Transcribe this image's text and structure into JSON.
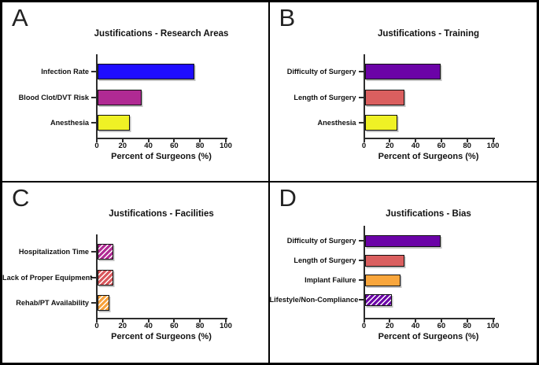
{
  "figure": {
    "background": "#ffffff",
    "border_color": "#000000",
    "x_axis_label": "Percent of Surgeons (%)",
    "x_ticks": [
      0,
      20,
      40,
      60,
      80,
      100
    ],
    "x_range": [
      0,
      100
    ]
  },
  "chart_data": [
    {
      "type": "bar",
      "orientation": "horizontal",
      "panel": "A",
      "title": "Justifications - Research Areas",
      "categories": [
        "Infection Rate",
        "Blood Clot/DVT Risk",
        "Anesthesia"
      ],
      "values": [
        75,
        34,
        25
      ],
      "colors": [
        "#1f0dff",
        "#b02a93",
        "#eff125"
      ],
      "hatched": [
        false,
        false,
        false
      ],
      "xlabel": "Percent of Surgeons (%)",
      "xlim": [
        0,
        100
      ],
      "xticks": [
        0,
        20,
        40,
        60,
        80,
        100
      ],
      "grid": false,
      "legend": "none"
    },
    {
      "type": "bar",
      "orientation": "horizontal",
      "panel": "B",
      "title": "Justifications - Training",
      "categories": [
        "Difficulty of Surgery",
        "Length of Surgery",
        "Anesthesia"
      ],
      "values": [
        59,
        31,
        25
      ],
      "colors": [
        "#6b03a7",
        "#da5f5f",
        "#eff125"
      ],
      "hatched": [
        false,
        false,
        false
      ],
      "xlabel": "Percent of Surgeons (%)",
      "xlim": [
        0,
        100
      ],
      "xticks": [
        0,
        20,
        40,
        60,
        80,
        100
      ],
      "grid": false,
      "legend": "none"
    },
    {
      "type": "bar",
      "orientation": "horizontal",
      "panel": "C",
      "title": "Justifications - Facilities",
      "categories": [
        "Hospitalization Time",
        "Lack of Proper Equipment",
        "Rehab/PT Availability"
      ],
      "values": [
        12,
        12,
        9
      ],
      "colors": [
        "#b02a93",
        "#d9575c",
        "#f7a13b"
      ],
      "hatched": [
        true,
        true,
        true
      ],
      "xlabel": "Percent of Surgeons (%)",
      "xlim": [
        0,
        100
      ],
      "xticks": [
        0,
        20,
        40,
        60,
        80,
        100
      ],
      "grid": false,
      "legend": "none"
    },
    {
      "type": "bar",
      "orientation": "horizontal",
      "panel": "D",
      "title": "Justifications - Bias",
      "categories": [
        "Difficulty of Surgery",
        "Length of Surgery",
        "Implant Failure",
        "Lifestyle/Non-Compliance"
      ],
      "values": [
        59,
        31,
        28,
        21
      ],
      "colors": [
        "#6b03a7",
        "#da5f5f",
        "#f9a63c",
        "#6b03a7"
      ],
      "hatched": [
        false,
        false,
        false,
        true
      ],
      "xlabel": "Percent of Surgeons (%)",
      "xlim": [
        0,
        100
      ],
      "xticks": [
        0,
        20,
        40,
        60,
        80,
        100
      ],
      "grid": false,
      "legend": "none"
    }
  ]
}
